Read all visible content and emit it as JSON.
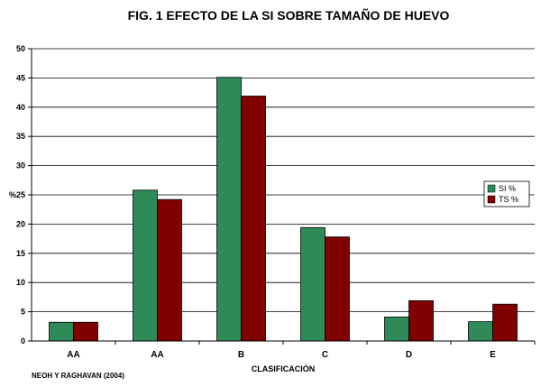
{
  "chart_data": {
    "type": "bar",
    "title": "FIG. 1  EFECTO DE LA SI SOBRE TAMAÑO DE HUEVO",
    "xlabel": "CLASIFICACIÓN",
    "ylabel": "%",
    "categories": [
      "AA",
      "AA",
      "B",
      "C",
      "D",
      "E"
    ],
    "series": [
      {
        "name": "SI %",
        "color": "#2e8b57",
        "values": [
          3.2,
          25.8,
          45.1,
          19.4,
          4.1,
          3.3
        ]
      },
      {
        "name": "TS %",
        "color": "#800000",
        "values": [
          3.2,
          24.2,
          41.9,
          17.8,
          6.9,
          6.3
        ]
      }
    ],
    "ylim": [
      0,
      50
    ],
    "yticks": [
      "0",
      "5",
      "10",
      "15",
      "20",
      "25",
      "30",
      "35",
      "40",
      "45",
      "50"
    ],
    "grid": true,
    "legend_position": "right",
    "source": "NEOH  Y  RAGHAVAN  (2004)"
  }
}
